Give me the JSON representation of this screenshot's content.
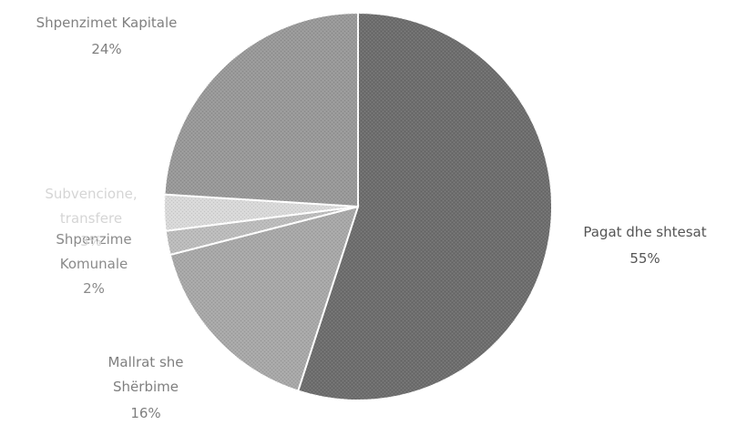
{
  "chart_data": {
    "type": "pie",
    "slices": [
      {
        "label": "Pagat dhe shtesat",
        "value": 55,
        "value_label": "55%",
        "color": "#6e6e6e",
        "label_color": "#555555"
      },
      {
        "label": "Mallrat she Shërbime",
        "value": 16,
        "value_label": "16%",
        "color": "#a8a8a8",
        "label_color": "#7f7f7f"
      },
      {
        "label": "Shpenzime Komunale",
        "value": 2,
        "value_label": "2%",
        "color": "#bcbcbc",
        "label_color": "#8a8a8a"
      },
      {
        "label": "Subvencione, transfere",
        "value": 3,
        "value_label": "3%",
        "color": "#d9d9d9",
        "label_color": "#d5d5d5"
      },
      {
        "label": "Shpenzimet Kapitale",
        "value": 24,
        "value_label": "24%",
        "color": "#999999",
        "label_color": "#808080"
      }
    ],
    "start_angle_deg": 0,
    "direction": "clockwise",
    "legend": "none"
  }
}
